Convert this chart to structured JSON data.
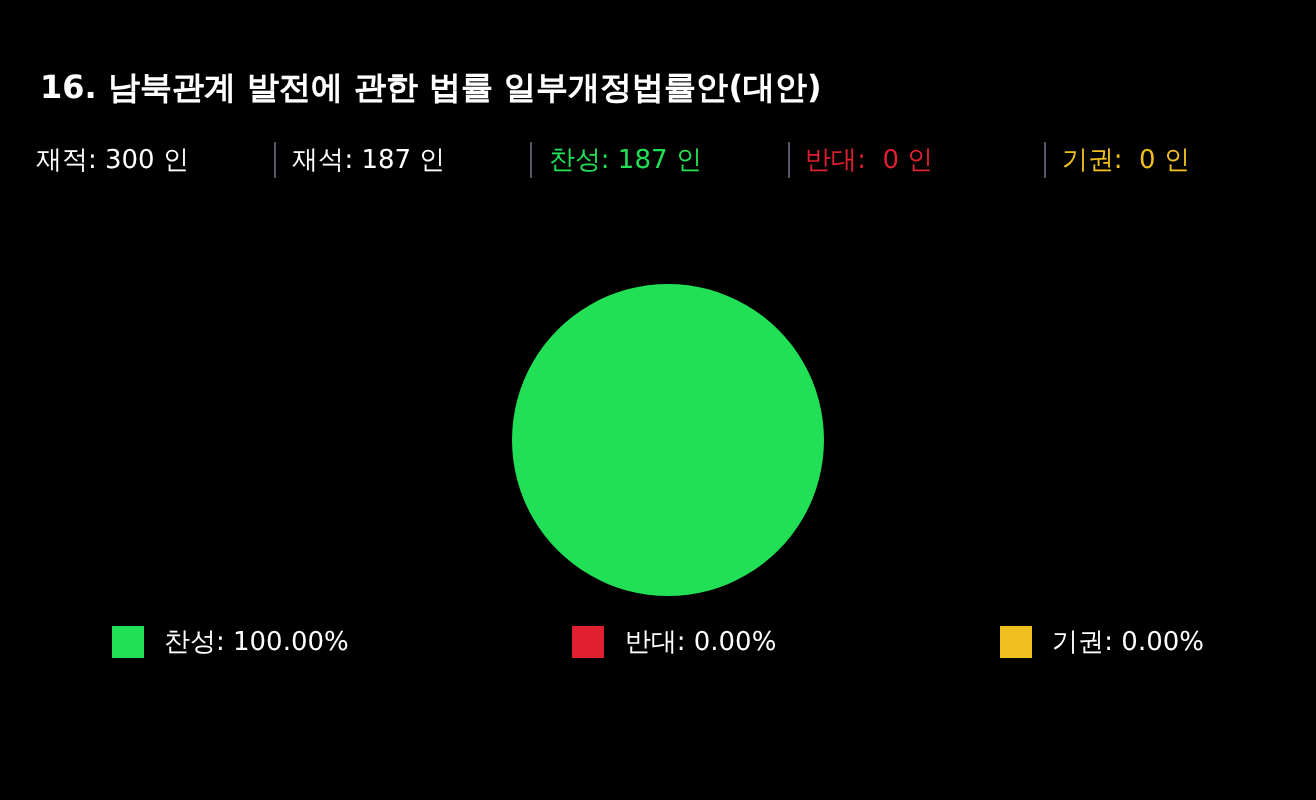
{
  "chart_data": {
    "type": "pie",
    "title": "16. 남북관계 발전에 관한 법률 일부개정법률안(대안)",
    "annotations": [
      "재적: 300 인",
      "재석: 187 인",
      "찬성: 187 인",
      "반대:  0 인",
      "기권:  0 인"
    ],
    "categories": [
      "찬성",
      "반대",
      "기권"
    ],
    "values": [
      100,
      0,
      0
    ],
    "value_labels": [
      "100.00%",
      "0.00%",
      "0.00%"
    ],
    "colors": [
      "#22e055",
      "#e02030",
      "#f0c020"
    ],
    "legend": "bottom"
  }
}
